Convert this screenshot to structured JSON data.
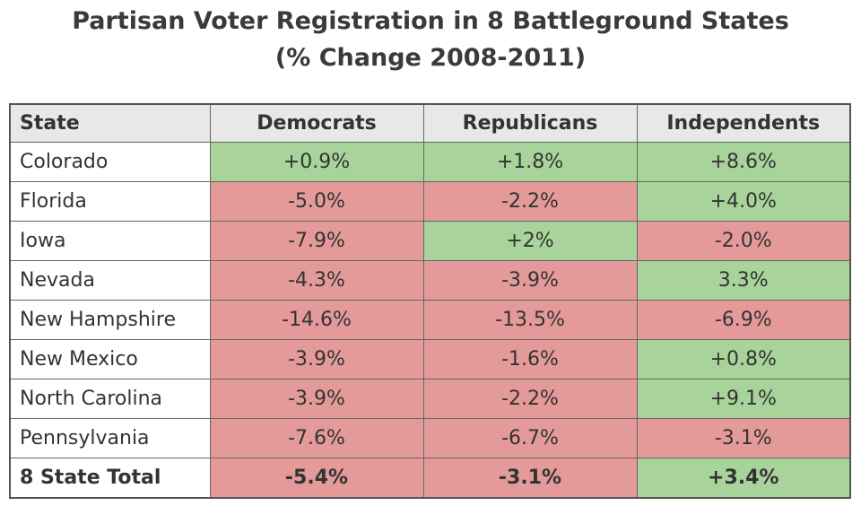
{
  "header": {
    "title": "Partisan Voter Registration in 8 Battleground States",
    "subtitle": "(% Change 2008-2011)"
  },
  "table": {
    "columns": [
      "State",
      "Democrats",
      "Republicans",
      "Independents"
    ],
    "rows": [
      [
        "Colorado",
        "+0.9%",
        "+1.8%",
        "+8.6%"
      ],
      [
        "Florida",
        "-5.0%",
        "-2.2%",
        "+4.0%"
      ],
      [
        "Iowa",
        "-7.9%",
        "+2%",
        "-2.0%"
      ],
      [
        "Nevada",
        "-4.3%",
        "-3.9%",
        "3.3%"
      ],
      [
        "New Hampshire",
        "-14.6%",
        "-13.5%",
        "-6.9%"
      ],
      [
        "New Mexico",
        "-3.9%",
        "-1.6%",
        "+0.8%"
      ],
      [
        "North Carolina",
        "-3.9%",
        "-2.2%",
        "+9.1%"
      ],
      [
        "Pennsylvania",
        "-7.6%",
        "-6.7%",
        "-3.1%"
      ],
      [
        "8 State Total",
        "-5.4%",
        "-3.1%",
        "+3.4%"
      ]
    ],
    "cell_colors": [
      [
        "#a8d49b",
        "#a8d49b",
        "#a8d49b"
      ],
      [
        "#e49a99",
        "#e49a99",
        "#a8d49b"
      ],
      [
        "#e49a99",
        "#a8d49b",
        "#e49a99"
      ],
      [
        "#e49a99",
        "#e49a99",
        "#a8d49b"
      ],
      [
        "#e49a99",
        "#e49a99",
        "#e49a99"
      ],
      [
        "#e49a99",
        "#e49a99",
        "#a8d49b"
      ],
      [
        "#e49a99",
        "#e49a99",
        "#a8d49b"
      ],
      [
        "#e49a99",
        "#e49a99",
        "#e49a99"
      ],
      [
        "#e49a99",
        "#e49a99",
        "#a8d49b"
      ]
    ]
  }
}
